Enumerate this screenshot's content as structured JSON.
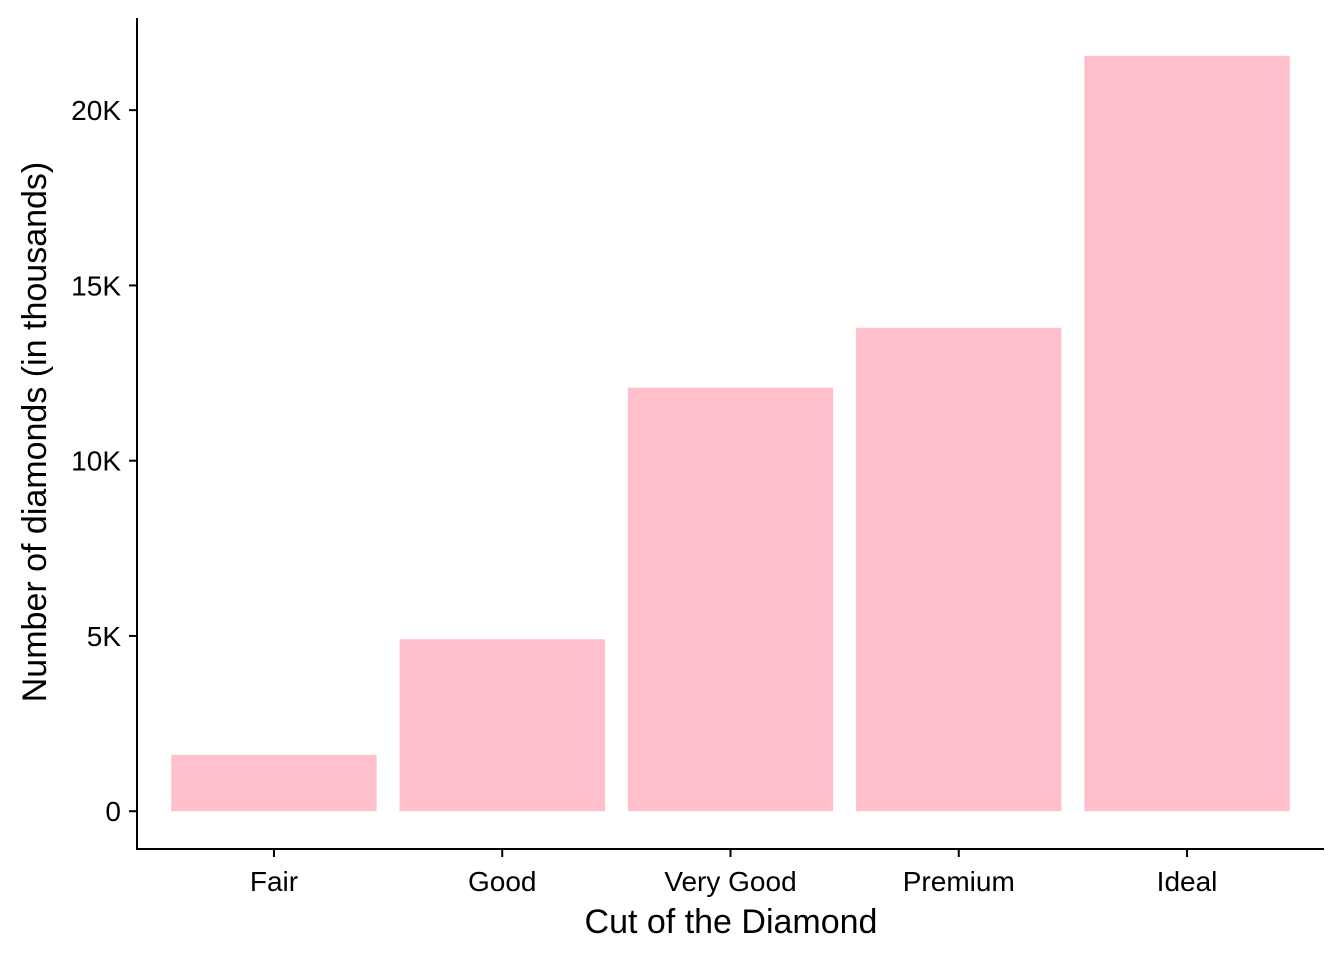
{
  "chart_data": {
    "type": "bar",
    "title": "",
    "xlabel": "Cut of the Diamond",
    "ylabel": "Number of diamonds (in thousands)",
    "categories": [
      "Fair",
      "Good",
      "Very Good",
      "Premium",
      "Ideal"
    ],
    "values": [
      1610,
      4906,
      12082,
      13791,
      21551
    ],
    "ylim": [
      -1078,
      22629
    ],
    "yticks": [
      0,
      5000,
      10000,
      15000,
      20000
    ],
    "ytick_labels": [
      "0",
      "5K",
      "10K",
      "15K",
      "20K"
    ],
    "bar_color": "#FFC0CB",
    "grid": false,
    "legend": "none"
  }
}
